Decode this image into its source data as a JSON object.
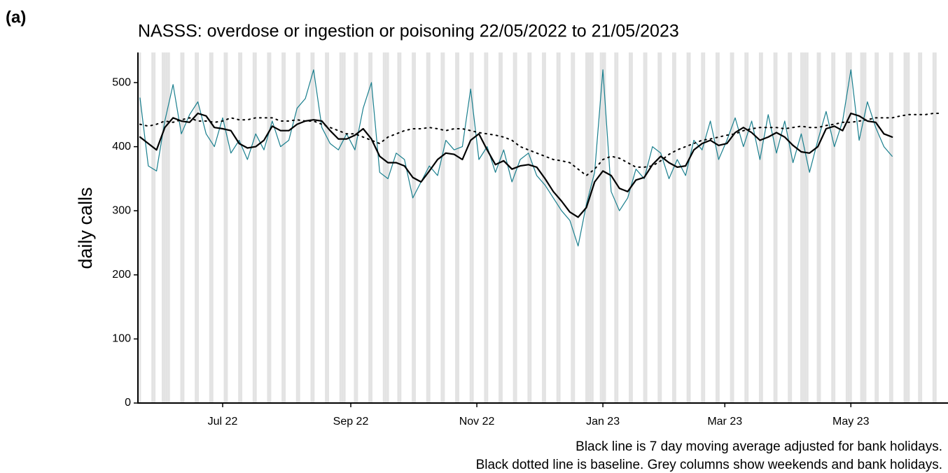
{
  "chart_data": {
    "type": "line",
    "panel_label": "(a)",
    "title": "NASSS: overdose or ingestion or poisoning 22/05/2022 to 21/05/2023",
    "y_label": "daily calls",
    "captions": [
      "Black line is 7 day moving average adjusted for bank holidays.",
      "Black dotted line is baseline. Grey columns show weekends and bank holidays."
    ],
    "x": [
      "2022-05-22",
      "2022-05-26",
      "2022-05-30",
      "2022-06-03",
      "2022-06-07",
      "2022-06-11",
      "2022-06-15",
      "2022-06-19",
      "2022-06-23",
      "2022-06-27",
      "2022-07-01",
      "2022-07-05",
      "2022-07-09",
      "2022-07-13",
      "2022-07-17",
      "2022-07-21",
      "2022-07-25",
      "2022-07-29",
      "2022-08-02",
      "2022-08-06",
      "2022-08-10",
      "2022-08-14",
      "2022-08-18",
      "2022-08-22",
      "2022-08-26",
      "2022-08-30",
      "2022-09-03",
      "2022-09-07",
      "2022-09-11",
      "2022-09-15",
      "2022-09-19",
      "2022-09-23",
      "2022-09-27",
      "2022-10-01",
      "2022-10-05",
      "2022-10-09",
      "2022-10-13",
      "2022-10-17",
      "2022-10-21",
      "2022-10-25",
      "2022-10-29",
      "2022-11-02",
      "2022-11-06",
      "2022-11-10",
      "2022-11-14",
      "2022-11-18",
      "2022-11-22",
      "2022-11-26",
      "2022-11-30",
      "2022-12-04",
      "2022-12-08",
      "2022-12-12",
      "2022-12-16",
      "2022-12-20",
      "2022-12-24",
      "2022-12-28",
      "2023-01-01",
      "2023-01-05",
      "2023-01-09",
      "2023-01-13",
      "2023-01-17",
      "2023-01-21",
      "2023-01-25",
      "2023-01-29",
      "2023-02-02",
      "2023-02-06",
      "2023-02-10",
      "2023-02-14",
      "2023-02-18",
      "2023-02-22",
      "2023-02-26",
      "2023-03-02",
      "2023-03-06",
      "2023-03-10",
      "2023-03-14",
      "2023-03-18",
      "2023-03-22",
      "2023-03-26",
      "2023-03-30",
      "2023-04-03",
      "2023-04-07",
      "2023-04-11",
      "2023-04-15",
      "2023-04-19",
      "2023-04-23",
      "2023-04-27",
      "2023-05-01",
      "2023-05-05",
      "2023-05-09",
      "2023-05-13",
      "2023-05-17",
      "2023-05-21",
      "2023-05-25",
      "2023-05-29",
      "2023-06-02",
      "2023-06-06",
      "2023-06-10",
      "2023-06-14"
    ],
    "series": [
      {
        "color": "#1a7f8e",
        "width": 1.2,
        "linestyle": "solid",
        "values": [
          476,
          370,
          362,
          440,
          497,
          420,
          450,
          470,
          420,
          400,
          445,
          390,
          410,
          380,
          420,
          395,
          440,
          400,
          410,
          460,
          475,
          520,
          430,
          405,
          395,
          420,
          395,
          460,
          500,
          360,
          350,
          390,
          380,
          320,
          345,
          370,
          355,
          410,
          395,
          400,
          490,
          380,
          400,
          360,
          395,
          345,
          380,
          390,
          355,
          340,
          320,
          300,
          285,
          245,
          310,
          360,
          520,
          330,
          300,
          320,
          365,
          350,
          400,
          390,
          350,
          380,
          355,
          410,
          395,
          440,
          380,
          410,
          445,
          400,
          440,
          380,
          450,
          390,
          440,
          375,
          420,
          360,
          410,
          455,
          400,
          440,
          520,
          410,
          470,
          430,
          400,
          385,
          null,
          null,
          null,
          null,
          null,
          null
        ]
      },
      {
        "color": "#000000",
        "width": 2.2,
        "linestyle": "solid",
        "values": [
          415,
          405,
          395,
          430,
          445,
          440,
          438,
          452,
          448,
          430,
          428,
          425,
          405,
          398,
          400,
          410,
          432,
          425,
          425,
          435,
          440,
          442,
          440,
          425,
          412,
          412,
          418,
          428,
          412,
          385,
          375,
          375,
          370,
          352,
          345,
          362,
          380,
          390,
          388,
          380,
          410,
          420,
          395,
          372,
          378,
          365,
          370,
          372,
          368,
          350,
          330,
          315,
          298,
          290,
          305,
          345,
          362,
          355,
          335,
          330,
          348,
          352,
          372,
          385,
          375,
          368,
          370,
          395,
          405,
          410,
          402,
          405,
          422,
          430,
          422,
          410,
          415,
          422,
          415,
          402,
          392,
          390,
          400,
          428,
          432,
          425,
          452,
          448,
          440,
          438,
          420,
          415,
          null,
          null,
          null,
          null,
          null,
          null
        ]
      },
      {
        "color": "#000000",
        "width": 2,
        "linestyle": "dotted",
        "values": [
          435,
          432,
          435,
          440,
          438,
          442,
          445,
          440,
          440,
          438,
          440,
          445,
          442,
          442,
          445,
          445,
          445,
          440,
          440,
          442,
          440,
          440,
          435,
          430,
          425,
          420,
          420,
          415,
          410,
          405,
          415,
          420,
          425,
          428,
          428,
          430,
          428,
          425,
          428,
          428,
          425,
          422,
          420,
          418,
          415,
          410,
          400,
          395,
          390,
          385,
          380,
          378,
          375,
          365,
          355,
          365,
          380,
          385,
          382,
          375,
          368,
          368,
          370,
          378,
          388,
          395,
          400,
          405,
          410,
          412,
          415,
          418,
          420,
          425,
          428,
          430,
          430,
          430,
          428,
          430,
          432,
          430,
          430,
          433,
          435,
          438,
          438,
          440,
          442,
          445,
          445,
          445,
          448,
          450,
          450,
          450,
          452,
          452
        ]
      }
    ],
    "xlim": [
      "2022-05-21",
      "2023-06-17"
    ],
    "xticks": [
      {
        "value": "2022-07-01",
        "label": "Jul 22"
      },
      {
        "value": "2022-09-01",
        "label": "Sep 22"
      },
      {
        "value": "2022-11-01",
        "label": "Nov 22"
      },
      {
        "value": "2023-01-01",
        "label": "Jan 23"
      },
      {
        "value": "2023-03-01",
        "label": "Mar 23"
      },
      {
        "value": "2023-05-01",
        "label": "May 23"
      }
    ],
    "ylim": [
      0,
      547
    ],
    "yticks": [
      0,
      100,
      200,
      300,
      400,
      500
    ],
    "shade_weekends": true,
    "shade_color": "#e3e3e3",
    "bank_holidays": [
      "2022-06-02",
      "2022-06-03",
      "2022-08-29",
      "2022-09-19",
      "2022-12-26",
      "2022-12-27",
      "2023-01-02",
      "2023-04-07",
      "2023-04-10",
      "2023-05-01",
      "2023-05-08",
      "2023-05-29"
    ]
  }
}
